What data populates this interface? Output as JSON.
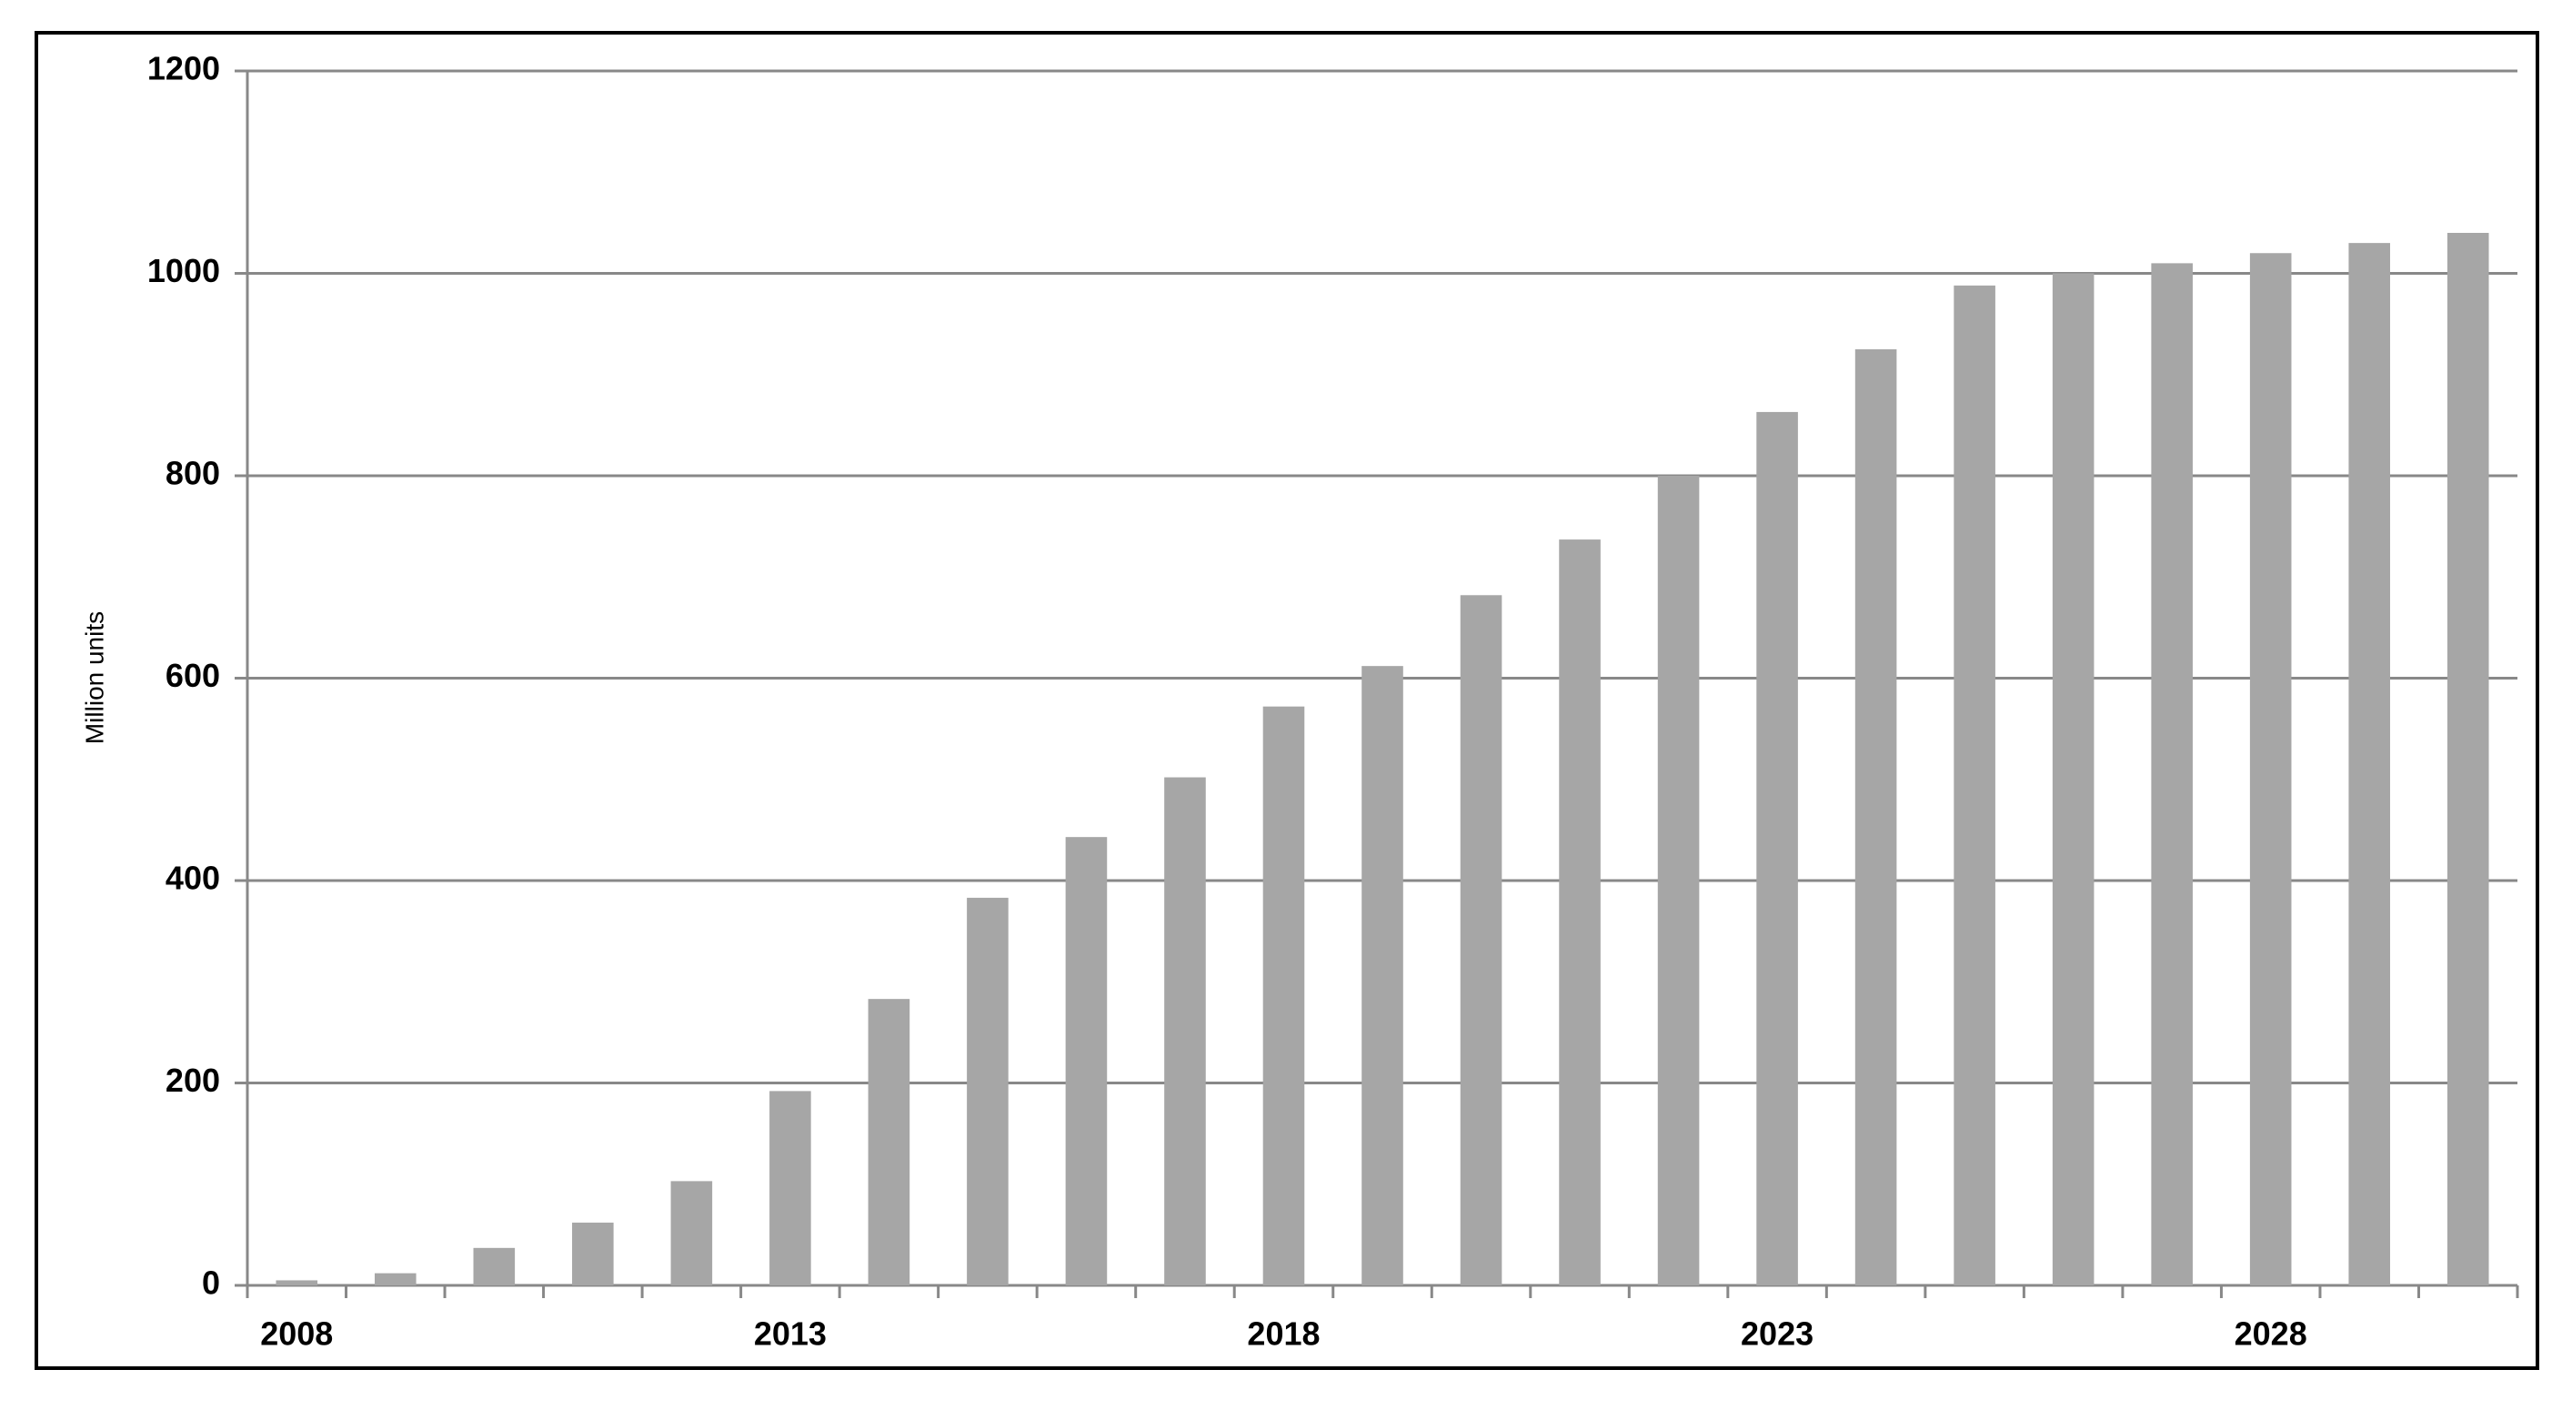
{
  "chart_data": {
    "type": "bar",
    "y_label": "Million units",
    "categories": [
      "2008",
      null,
      null,
      null,
      null,
      "2013",
      null,
      null,
      null,
      null,
      "2018",
      null,
      null,
      null,
      null,
      "2023",
      null,
      null,
      null,
      null,
      "2028",
      null,
      null
    ],
    "values": [
      5,
      12,
      37,
      62,
      103,
      192,
      283,
      383,
      443,
      502,
      572,
      612,
      682,
      737,
      800,
      863,
      925,
      988,
      1000,
      1010,
      1020,
      1030,
      1040
    ],
    "color": "#a6a6a6",
    "ylim": [
      0,
      1200
    ],
    "yticks": [
      0,
      200,
      400,
      600,
      800,
      1000,
      1200
    ],
    "grid": true
  }
}
